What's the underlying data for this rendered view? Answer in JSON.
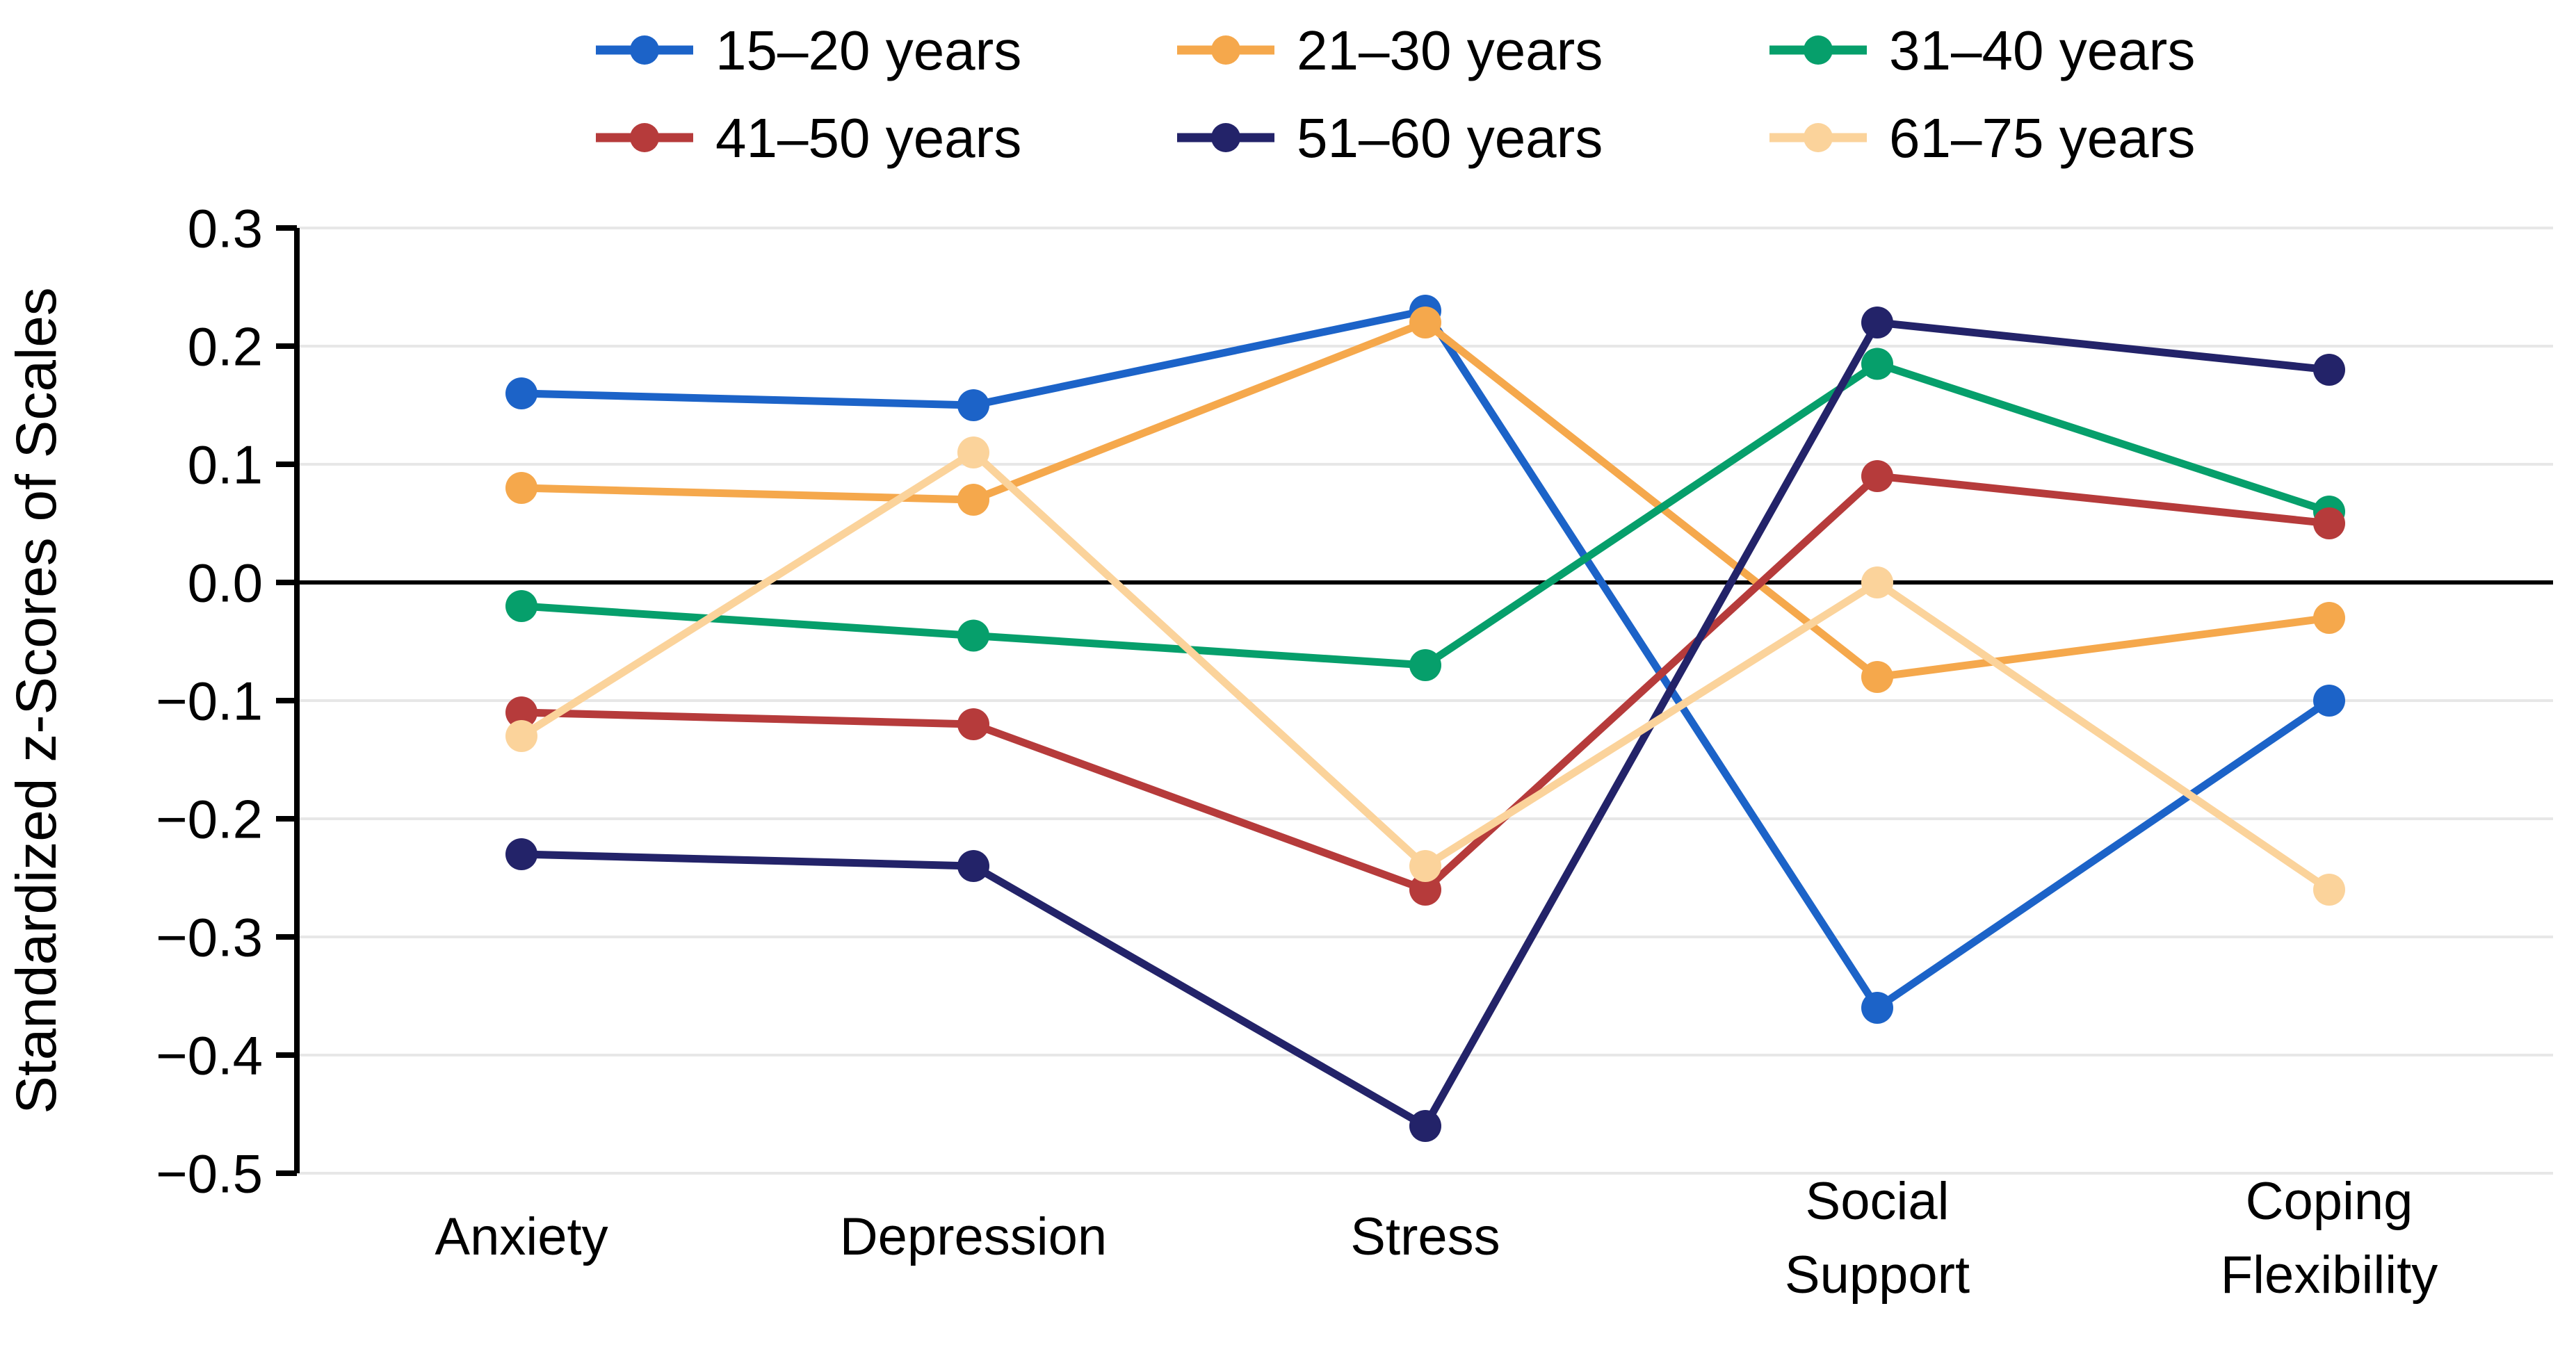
{
  "chart_data": {
    "type": "line",
    "title": "",
    "ylabel": "Standardized z-Scores of Scales",
    "xlabel": "",
    "categories": [
      [
        "Anxiety"
      ],
      [
        "Depression"
      ],
      [
        "Stress"
      ],
      [
        "Social",
        "Support"
      ],
      [
        "Coping",
        "Flexibility"
      ]
    ],
    "y_ticks": [
      0.3,
      0.2,
      0.1,
      0.0,
      -0.1,
      -0.2,
      -0.3,
      -0.4,
      -0.5
    ],
    "y_tick_labels": [
      "0.3",
      "0.2",
      "0.1",
      "0.0",
      "−0.1",
      "−0.2",
      "−0.3",
      "−0.4",
      "−0.5"
    ],
    "ylim": [
      -0.5,
      0.3
    ],
    "grid": true,
    "zero_line": true,
    "legend_position": "top",
    "legend_rows": 2,
    "series": [
      {
        "name": "15–20 years",
        "color": "#1c63c8",
        "values": [
          0.16,
          0.15,
          0.23,
          -0.36,
          -0.1
        ]
      },
      {
        "name": "21–30 years",
        "color": "#f5a84c",
        "values": [
          0.08,
          0.07,
          0.22,
          -0.08,
          -0.03
        ]
      },
      {
        "name": "31–40 years",
        "color": "#069f6b",
        "values": [
          -0.02,
          -0.045,
          -0.07,
          0.185,
          0.06
        ]
      },
      {
        "name": "41–50 years",
        "color": "#b63b3b",
        "values": [
          -0.11,
          -0.12,
          -0.26,
          0.09,
          0.05
        ]
      },
      {
        "name": "51–60 years",
        "color": "#232369",
        "values": [
          -0.23,
          -0.24,
          -0.46,
          0.22,
          0.18
        ]
      },
      {
        "name": "61–75 years",
        "color": "#fbd39b",
        "values": [
          -0.13,
          0.11,
          -0.24,
          0.0,
          -0.26
        ]
      }
    ],
    "colors": {
      "grid": "#e7e7e7",
      "zero_line": "#000000",
      "axis": "#000000",
      "text": "#000000",
      "background": "#ffffff"
    }
  }
}
